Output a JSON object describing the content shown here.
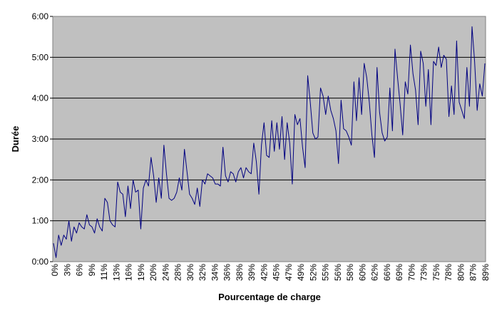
{
  "chart_data": {
    "type": "line",
    "xlabel": "Pourcentage de charge",
    "ylabel": "Durée",
    "y_unit": "hours:minutes",
    "ylim": [
      0,
      6
    ],
    "y_ticks": [
      "0:00",
      "1:00",
      "2:00",
      "3:00",
      "4:00",
      "5:00",
      "6:00"
    ],
    "x_ticks": [
      "0%",
      "3%",
      "6%",
      "9%",
      "11%",
      "13%",
      "16%",
      "19%",
      "20%",
      "24%",
      "28%",
      "30%",
      "32%",
      "34%",
      "36%",
      "38%",
      "39%",
      "42%",
      "45%",
      "47%",
      "49%",
      "52%",
      "55%",
      "56%",
      "58%",
      "60%",
      "62%",
      "66%",
      "69%",
      "70%",
      "73%",
      "75%",
      "78%",
      "80%",
      "87%",
      "89%"
    ],
    "grid": "horizontal",
    "background": "#c0c0c0",
    "line_color": "#000080",
    "series": [
      {
        "values": [
          0.45,
          0.1,
          0.65,
          0.4,
          0.65,
          0.55,
          1.0,
          0.5,
          0.85,
          0.7,
          0.95,
          0.85,
          0.8,
          1.15,
          0.9,
          0.85,
          0.7,
          1.05,
          0.85,
          0.75,
          1.55,
          1.45,
          1.0,
          0.9,
          0.85,
          1.95,
          1.7,
          1.65,
          1.1,
          1.85,
          1.3,
          2.0,
          1.7,
          1.75,
          0.8,
          1.8,
          2.0,
          1.85,
          2.55,
          2.1,
          1.45,
          2.05,
          1.55,
          2.85,
          2.15,
          1.55,
          1.5,
          1.55,
          1.7,
          2.05,
          1.75,
          2.75,
          2.2,
          1.65,
          1.55,
          1.4,
          1.8,
          1.35,
          2.0,
          1.9,
          2.15,
          2.1,
          2.05,
          1.9,
          1.9,
          1.85,
          2.8,
          2.1,
          1.95,
          2.2,
          2.15,
          1.95,
          2.2,
          2.3,
          2.05,
          2.3,
          2.2,
          2.15,
          2.9,
          2.45,
          1.65,
          2.85,
          3.4,
          2.6,
          2.55,
          3.45,
          2.7,
          3.4,
          2.75,
          3.55,
          2.5,
          3.4,
          2.9,
          1.9,
          3.6,
          3.35,
          3.5,
          2.8,
          2.3,
          4.55,
          3.9,
          3.15,
          3.0,
          3.05,
          4.25,
          4.05,
          3.6,
          4.05,
          3.7,
          3.5,
          3.2,
          2.4,
          3.95,
          3.25,
          3.2,
          3.05,
          2.85,
          4.4,
          3.45,
          4.5,
          3.6,
          4.85,
          4.5,
          3.9,
          3.1,
          2.55,
          4.75,
          3.65,
          3.15,
          2.95,
          3.05,
          4.25,
          3.2,
          5.2,
          4.5,
          3.85,
          3.1,
          4.4,
          4.1,
          5.3,
          4.6,
          4.2,
          3.35,
          5.15,
          4.85,
          3.8,
          4.7,
          3.35,
          4.9,
          4.8,
          5.25,
          4.75,
          5.05,
          4.95,
          3.55,
          4.3,
          3.6,
          5.4,
          3.9,
          3.7,
          3.5,
          4.75,
          3.8,
          5.75,
          4.9,
          3.7,
          4.35,
          4.05,
          4.85
        ]
      }
    ]
  }
}
